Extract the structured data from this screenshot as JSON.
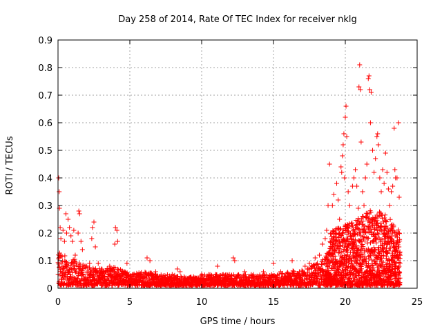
{
  "chart_data": {
    "type": "scatter",
    "title": "Day 258 of 2014, Rate Of TEC Index for receiver nklg",
    "xlabel": "GPS time / hours",
    "ylabel": "ROTI / TECUs",
    "xlim": [
      0,
      25
    ],
    "ylim": [
      0,
      0.9
    ],
    "x_ticks": [
      "0",
      "5",
      "10",
      "15",
      "20",
      "25"
    ],
    "y_ticks": [
      "0",
      "0.1",
      "0.2",
      "0.3",
      "0.4",
      "0.5",
      "0.6",
      "0.7",
      "0.8",
      "0.9"
    ],
    "grid": true,
    "marker": "+",
    "color": "#ff0000",
    "series": [
      {
        "name": "ROTI",
        "points": [
          [
            0.05,
            0.4
          ],
          [
            0.08,
            0.35
          ],
          [
            0.1,
            0.29
          ],
          [
            0.15,
            0.22
          ],
          [
            0.2,
            0.18
          ],
          [
            0.35,
            0.21
          ],
          [
            0.45,
            0.17
          ],
          [
            0.55,
            0.27
          ],
          [
            0.6,
            0.2
          ],
          [
            0.7,
            0.25
          ],
          [
            0.8,
            0.22
          ],
          [
            0.9,
            0.19
          ],
          [
            1.0,
            0.17
          ],
          [
            1.1,
            0.21
          ],
          [
            1.2,
            0.12
          ],
          [
            1.4,
            0.2
          ],
          [
            1.45,
            0.28
          ],
          [
            1.5,
            0.27
          ],
          [
            1.6,
            0.17
          ],
          [
            1.7,
            0.14
          ],
          [
            2.0,
            0.08
          ],
          [
            2.2,
            0.09
          ],
          [
            2.35,
            0.18
          ],
          [
            2.4,
            0.22
          ],
          [
            2.5,
            0.24
          ],
          [
            2.6,
            0.15
          ],
          [
            2.8,
            0.09
          ],
          [
            3.0,
            0.07
          ],
          [
            3.3,
            0.06
          ],
          [
            3.6,
            0.08
          ],
          [
            3.95,
            0.16
          ],
          [
            4.0,
            0.22
          ],
          [
            4.1,
            0.21
          ],
          [
            4.15,
            0.17
          ],
          [
            4.5,
            0.06
          ],
          [
            4.8,
            0.09
          ],
          [
            5.2,
            0.05
          ],
          [
            5.8,
            0.05
          ],
          [
            6.2,
            0.11
          ],
          [
            6.4,
            0.1
          ],
          [
            6.8,
            0.06
          ],
          [
            7.5,
            0.04
          ],
          [
            8.3,
            0.07
          ],
          [
            8.5,
            0.06
          ],
          [
            9.2,
            0.04
          ],
          [
            10.0,
            0.05
          ],
          [
            10.5,
            0.05
          ],
          [
            11.1,
            0.08
          ],
          [
            11.5,
            0.05
          ],
          [
            12.2,
            0.11
          ],
          [
            12.3,
            0.1
          ],
          [
            13.0,
            0.06
          ],
          [
            13.6,
            0.05
          ],
          [
            14.3,
            0.06
          ],
          [
            15.0,
            0.09
          ],
          [
            15.5,
            0.06
          ],
          [
            16.3,
            0.1
          ],
          [
            16.8,
            0.06
          ],
          [
            17.2,
            0.08
          ],
          [
            17.5,
            0.09
          ],
          [
            17.9,
            0.11
          ],
          [
            18.2,
            0.12
          ],
          [
            18.4,
            0.16
          ],
          [
            18.6,
            0.18
          ],
          [
            18.7,
            0.21
          ],
          [
            18.8,
            0.3
          ],
          [
            18.9,
            0.45
          ],
          [
            19.05,
            0.18
          ],
          [
            19.1,
            0.3
          ],
          [
            19.2,
            0.34
          ],
          [
            19.3,
            0.2
          ],
          [
            19.4,
            0.38
          ],
          [
            19.5,
            0.32
          ],
          [
            19.6,
            0.25
          ],
          [
            19.7,
            0.44
          ],
          [
            19.75,
            0.42
          ],
          [
            19.8,
            0.48
          ],
          [
            19.85,
            0.52
          ],
          [
            19.9,
            0.56
          ],
          [
            19.95,
            0.4
          ],
          [
            20.0,
            0.62
          ],
          [
            20.05,
            0.66
          ],
          [
            20.1,
            0.55
          ],
          [
            20.2,
            0.35
          ],
          [
            20.3,
            0.3
          ],
          [
            20.5,
            0.37
          ],
          [
            20.6,
            0.4
          ],
          [
            20.7,
            0.43
          ],
          [
            20.8,
            0.37
          ],
          [
            20.9,
            0.29
          ],
          [
            20.95,
            0.73
          ],
          [
            21.0,
            0.81
          ],
          [
            21.05,
            0.72
          ],
          [
            21.1,
            0.53
          ],
          [
            21.2,
            0.35
          ],
          [
            21.3,
            0.3
          ],
          [
            21.4,
            0.4
          ],
          [
            21.5,
            0.45
          ],
          [
            21.6,
            0.76
          ],
          [
            21.65,
            0.77
          ],
          [
            21.7,
            0.72
          ],
          [
            21.75,
            0.6
          ],
          [
            21.8,
            0.71
          ],
          [
            21.9,
            0.5
          ],
          [
            22.0,
            0.42
          ],
          [
            22.1,
            0.47
          ],
          [
            22.2,
            0.55
          ],
          [
            22.25,
            0.56
          ],
          [
            22.3,
            0.52
          ],
          [
            22.4,
            0.4
          ],
          [
            22.5,
            0.35
          ],
          [
            22.6,
            0.43
          ],
          [
            22.7,
            0.38
          ],
          [
            22.8,
            0.49
          ],
          [
            22.9,
            0.42
          ],
          [
            23.0,
            0.36
          ],
          [
            23.1,
            0.3
          ],
          [
            23.2,
            0.35
          ],
          [
            23.3,
            0.37
          ],
          [
            23.4,
            0.58
          ],
          [
            23.45,
            0.43
          ],
          [
            23.5,
            0.4
          ],
          [
            23.6,
            0.4
          ],
          [
            23.7,
            0.6
          ],
          [
            23.75,
            0.33
          ]
        ],
        "baseline_density": [
          [
            0.0,
            0.12
          ],
          [
            1.0,
            0.1
          ],
          [
            2.0,
            0.07
          ],
          [
            3.0,
            0.06
          ],
          [
            4.0,
            0.07
          ],
          [
            5.0,
            0.04
          ],
          [
            6.0,
            0.05
          ],
          [
            7.0,
            0.04
          ],
          [
            8.0,
            0.04
          ],
          [
            9.0,
            0.03
          ],
          [
            10.0,
            0.04
          ],
          [
            11.0,
            0.04
          ],
          [
            12.0,
            0.04
          ],
          [
            13.0,
            0.04
          ],
          [
            14.0,
            0.04
          ],
          [
            15.0,
            0.04
          ],
          [
            16.0,
            0.05
          ],
          [
            17.0,
            0.06
          ],
          [
            18.0,
            0.08
          ],
          [
            18.6,
            0.1
          ],
          [
            19.0,
            0.2
          ],
          [
            20.0,
            0.22
          ],
          [
            21.0,
            0.25
          ],
          [
            22.0,
            0.28
          ],
          [
            23.0,
            0.25
          ],
          [
            23.8,
            0.2
          ]
        ]
      }
    ]
  }
}
